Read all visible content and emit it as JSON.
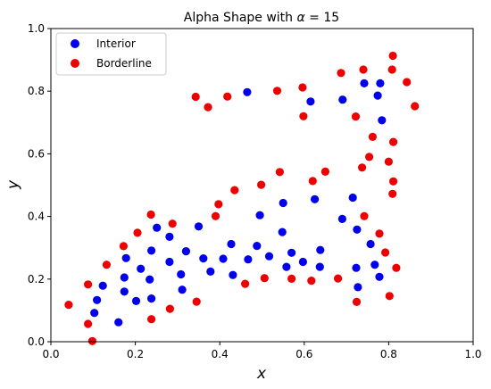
{
  "chart_data": {
    "type": "scatter",
    "title": "Alpha Shape with α = 15",
    "title_prefix": "Alpha Shape with ",
    "title_symbol": "α",
    "title_suffix": " = 15",
    "xlabel": "x",
    "ylabel": "y",
    "xlim": [
      0.0,
      1.0
    ],
    "ylim": [
      0.0,
      1.0
    ],
    "xticks": [
      "0.0",
      "0.2",
      "0.4",
      "0.6",
      "0.8",
      "1.0"
    ],
    "yticks": [
      "0.0",
      "0.2",
      "0.4",
      "0.6",
      "0.8",
      "1.0"
    ],
    "grid": false,
    "legend_position": "top-left",
    "series": [
      {
        "name": "Interior",
        "color": "#0000ee",
        "points": [
          [
            0.103,
            0.092
          ],
          [
            0.109,
            0.133
          ],
          [
            0.123,
            0.179
          ],
          [
            0.16,
            0.062
          ],
          [
            0.174,
            0.16
          ],
          [
            0.174,
            0.205
          ],
          [
            0.178,
            0.267
          ],
          [
            0.202,
            0.13
          ],
          [
            0.213,
            0.233
          ],
          [
            0.234,
            0.199
          ],
          [
            0.238,
            0.138
          ],
          [
            0.238,
            0.291
          ],
          [
            0.251,
            0.364
          ],
          [
            0.281,
            0.335
          ],
          [
            0.281,
            0.255
          ],
          [
            0.308,
            0.215
          ],
          [
            0.311,
            0.166
          ],
          [
            0.32,
            0.289
          ],
          [
            0.35,
            0.368
          ],
          [
            0.361,
            0.266
          ],
          [
            0.378,
            0.224
          ],
          [
            0.408,
            0.265
          ],
          [
            0.427,
            0.312
          ],
          [
            0.431,
            0.213
          ],
          [
            0.465,
            0.797
          ],
          [
            0.467,
            0.263
          ],
          [
            0.488,
            0.306
          ],
          [
            0.495,
            0.404
          ],
          [
            0.517,
            0.273
          ],
          [
            0.548,
            0.35
          ],
          [
            0.55,
            0.443
          ],
          [
            0.558,
            0.239
          ],
          [
            0.57,
            0.284
          ],
          [
            0.597,
            0.255
          ],
          [
            0.615,
            0.767
          ],
          [
            0.625,
            0.455
          ],
          [
            0.637,
            0.239
          ],
          [
            0.638,
            0.293
          ],
          [
            0.69,
            0.392
          ],
          [
            0.691,
            0.773
          ],
          [
            0.715,
            0.46
          ],
          [
            0.723,
            0.236
          ],
          [
            0.725,
            0.358
          ],
          [
            0.727,
            0.174
          ],
          [
            0.742,
            0.825
          ],
          [
            0.757,
            0.312
          ],
          [
            0.767,
            0.246
          ],
          [
            0.774,
            0.786
          ],
          [
            0.778,
            0.207
          ],
          [
            0.78,
            0.825
          ],
          [
            0.784,
            0.707
          ]
        ]
      },
      {
        "name": "Borderline",
        "color": "#ee0000",
        "points": [
          [
            0.042,
            0.118
          ],
          [
            0.088,
            0.057
          ],
          [
            0.088,
            0.183
          ],
          [
            0.098,
            0.002
          ],
          [
            0.132,
            0.246
          ],
          [
            0.172,
            0.305
          ],
          [
            0.205,
            0.348
          ],
          [
            0.237,
            0.406
          ],
          [
            0.238,
            0.072
          ],
          [
            0.282,
            0.105
          ],
          [
            0.288,
            0.377
          ],
          [
            0.343,
            0.782
          ],
          [
            0.345,
            0.128
          ],
          [
            0.372,
            0.749
          ],
          [
            0.39,
            0.401
          ],
          [
            0.397,
            0.439
          ],
          [
            0.418,
            0.783
          ],
          [
            0.435,
            0.484
          ],
          [
            0.46,
            0.185
          ],
          [
            0.498,
            0.501
          ],
          [
            0.506,
            0.203
          ],
          [
            0.536,
            0.801
          ],
          [
            0.542,
            0.542
          ],
          [
            0.57,
            0.201
          ],
          [
            0.596,
            0.812
          ],
          [
            0.598,
            0.72
          ],
          [
            0.617,
            0.195
          ],
          [
            0.62,
            0.513
          ],
          [
            0.65,
            0.543
          ],
          [
            0.68,
            0.202
          ],
          [
            0.687,
            0.858
          ],
          [
            0.722,
            0.719
          ],
          [
            0.724,
            0.127
          ],
          [
            0.737,
            0.556
          ],
          [
            0.74,
            0.869
          ],
          [
            0.742,
            0.401
          ],
          [
            0.754,
            0.59
          ],
          [
            0.762,
            0.654
          ],
          [
            0.778,
            0.345
          ],
          [
            0.792,
            0.285
          ],
          [
            0.8,
            0.575
          ],
          [
            0.802,
            0.146
          ],
          [
            0.808,
            0.869
          ],
          [
            0.809,
            0.472
          ],
          [
            0.81,
            0.913
          ],
          [
            0.811,
            0.638
          ],
          [
            0.811,
            0.512
          ],
          [
            0.818,
            0.236
          ],
          [
            0.843,
            0.829
          ],
          [
            0.862,
            0.752
          ]
        ]
      }
    ]
  }
}
